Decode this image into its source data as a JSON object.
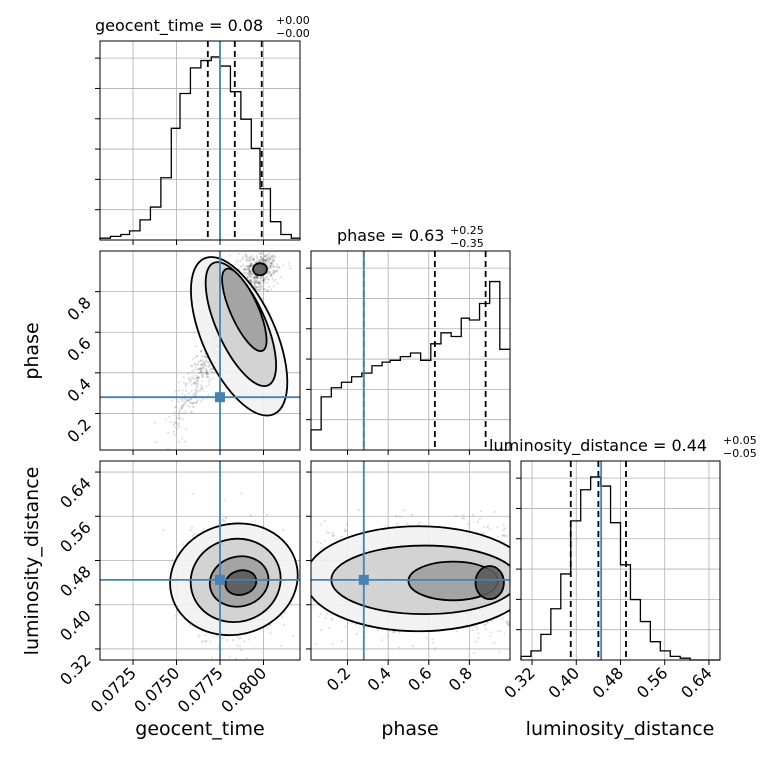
{
  "chart_data": {
    "type": "corner",
    "parameters": [
      "geocent_time",
      "phase",
      "luminosity_distance"
    ],
    "injection": {
      "geocent_time": 0.0775,
      "phase": 0.28,
      "luminosity_distance": 0.445
    },
    "titles": [
      {
        "name": "geocent_time",
        "text": "geocent_time = 0.08",
        "plus": "+0.00",
        "minus": "−0.00"
      },
      {
        "name": "phase",
        "text": "phase = 0.63",
        "plus": "+0.25",
        "minus": "−0.35"
      },
      {
        "name": "luminosity_distance",
        "text": "luminosity_distance = 0.44",
        "plus": "+0.05",
        "minus": "−0.05"
      }
    ],
    "axis_labels": {
      "geocent_time": "geocent_time",
      "phase": "phase",
      "luminosity_distance": "luminosity_distance"
    },
    "ticks": {
      "geocent_time": {
        "values": [
          0.0725,
          0.075,
          0.0775,
          0.08
        ],
        "labels": [
          "0.0725",
          "0.0750",
          "0.0775",
          "0.0800"
        ]
      },
      "phase": {
        "values": [
          0.2,
          0.4,
          0.6,
          0.8
        ],
        "labels": [
          "0.2",
          "0.4",
          "0.6",
          "0.8"
        ]
      },
      "luminosity_distance": {
        "values": [
          0.32,
          0.4,
          0.48,
          0.56,
          0.64
        ],
        "labels": [
          "0.32",
          "0.40",
          "0.48",
          "0.56",
          "0.64"
        ]
      }
    },
    "ranges": {
      "geocent_time": [
        0.0706,
        0.0821
      ],
      "phase": [
        0.02,
        1.0
      ],
      "luminosity_distance": [
        0.3,
        0.66
      ]
    },
    "quantiles": {
      "geocent_time": [
        0.0768,
        0.07835,
        0.0799
      ],
      "phase": [
        0.28,
        0.63,
        0.88
      ],
      "luminosity_distance": [
        0.39,
        0.44,
        0.49
      ]
    },
    "hist_1d": {
      "geocent_time": {
        "edges": [
          0.0706,
          0.0712,
          0.0718,
          0.0723,
          0.0729,
          0.0735,
          0.0741,
          0.0747,
          0.0752,
          0.0758,
          0.0764,
          0.077,
          0.0775,
          0.0781,
          0.0787,
          0.0793,
          0.0798,
          0.0804,
          0.081,
          0.0816,
          0.0821
        ],
        "counts": [
          0.01,
          0.02,
          0.03,
          0.05,
          0.11,
          0.18,
          0.34,
          0.61,
          0.8,
          0.94,
          0.98,
          1.0,
          0.95,
          0.81,
          0.66,
          0.5,
          0.28,
          0.1,
          0.03,
          0.01
        ]
      },
      "phase": {
        "edges": [
          0.02,
          0.07,
          0.12,
          0.17,
          0.22,
          0.27,
          0.32,
          0.37,
          0.41,
          0.46,
          0.51,
          0.56,
          0.61,
          0.66,
          0.71,
          0.76,
          0.8,
          0.85,
          0.9,
          0.95,
          1.0
        ],
        "counts": [
          0.11,
          0.29,
          0.34,
          0.37,
          0.4,
          0.42,
          0.46,
          0.48,
          0.49,
          0.51,
          0.53,
          0.49,
          0.58,
          0.64,
          0.62,
          0.72,
          0.71,
          0.8,
          0.92,
          0.55
        ]
      },
      "luminosity_distance": {
        "edges": [
          0.3,
          0.318,
          0.336,
          0.354,
          0.372,
          0.39,
          0.408,
          0.426,
          0.444,
          0.462,
          0.48,
          0.498,
          0.516,
          0.534,
          0.552,
          0.57,
          0.588,
          0.606,
          0.624,
          0.642,
          0.66
        ],
        "counts": [
          0.02,
          0.05,
          0.14,
          0.28,
          0.47,
          0.76,
          0.93,
          1.0,
          0.95,
          0.75,
          0.52,
          0.33,
          0.21,
          0.1,
          0.05,
          0.02,
          0.01,
          0.0,
          0.0,
          0.0
        ]
      }
    },
    "grid": true
  }
}
